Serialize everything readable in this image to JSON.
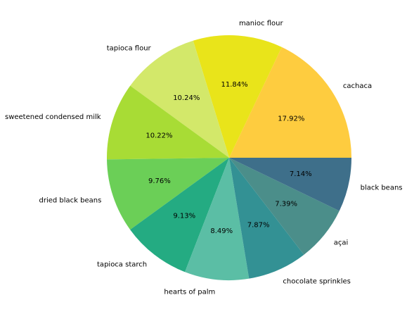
{
  "chart_data": {
    "type": "pie",
    "title": "",
    "start_angle_deg": 0,
    "direction": "counterclockwise",
    "legend": "none",
    "slices": [
      {
        "label": "cachaca",
        "value": 17.92,
        "pct_label": "17.92%",
        "color": "#fecc3f"
      },
      {
        "label": "manioc flour",
        "value": 11.84,
        "pct_label": "11.84%",
        "color": "#e9e41a"
      },
      {
        "label": "tapioca flour",
        "value": 10.24,
        "pct_label": "10.24%",
        "color": "#d3e86a"
      },
      {
        "label": "sweetened condensed milk",
        "value": 10.22,
        "pct_label": "10.22%",
        "color": "#a8dc35"
      },
      {
        "label": "dried black beans",
        "value": 9.76,
        "pct_label": "9.76%",
        "color": "#6bcf57"
      },
      {
        "label": "tapioca starch",
        "value": 9.13,
        "pct_label": "9.13%",
        "color": "#24ab82"
      },
      {
        "label": "hearts of palm",
        "value": 8.49,
        "pct_label": "8.49%",
        "color": "#5bbea5"
      },
      {
        "label": "chocolate sprinkles",
        "value": 7.87,
        "pct_label": "7.87%",
        "color": "#339194"
      },
      {
        "label": "açai",
        "value": 7.39,
        "pct_label": "7.39%",
        "color": "#4b8e8a"
      },
      {
        "label": "black beans",
        "value": 7.14,
        "pct_label": "7.14%",
        "color": "#3e6f8a"
      }
    ]
  }
}
